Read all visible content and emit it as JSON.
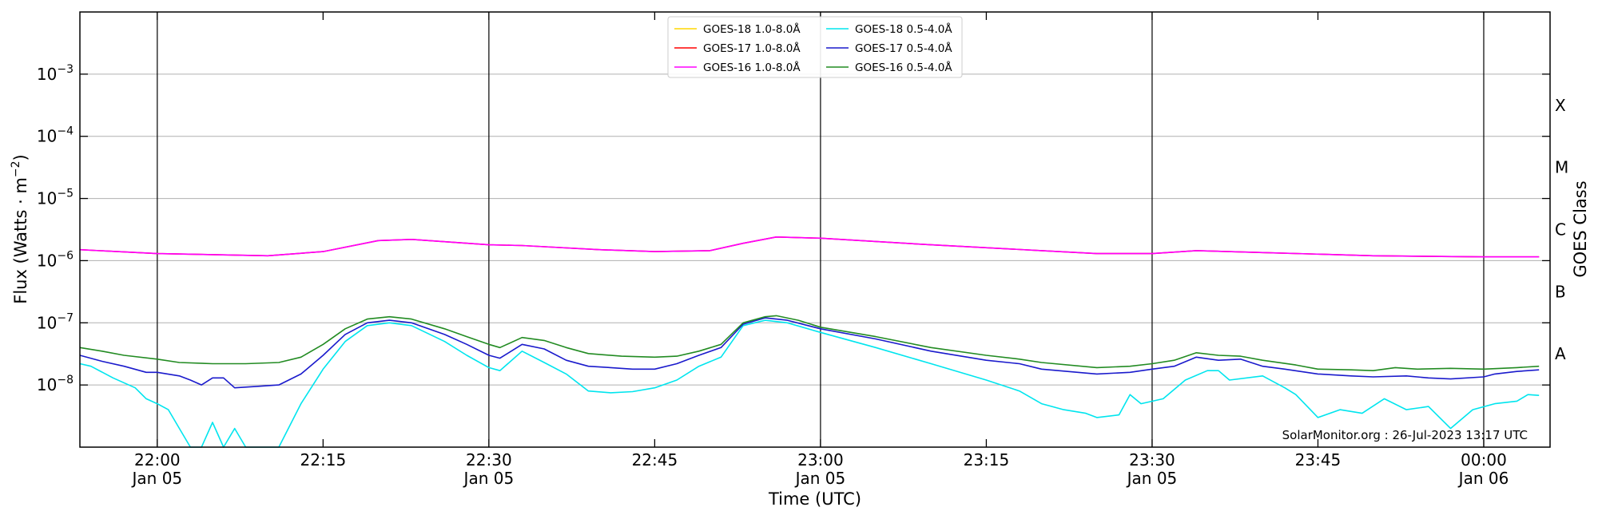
{
  "chart_data": {
    "type": "line",
    "xlabel": "Time (UTC)",
    "ylabel": "Flux (Watts · m",
    "ylabel_exp": "−2",
    "ylabel_close": ")",
    "y2label": "GOES Class",
    "yscale": "log",
    "xlim": [
      "21:53",
      "00:06"
    ],
    "ylim": [
      1e-09,
      0.01
    ],
    "grid": "horizontal",
    "legend_position": "top-center",
    "credit": "SolarMonitor.org : 26-Jul-2023 13:17 UTC",
    "x_ticks": [
      {
        "time": "22:00",
        "label": "22:00",
        "date": "Jan 05",
        "vline": true
      },
      {
        "time": "22:15",
        "label": "22:15",
        "date": "",
        "vline": false
      },
      {
        "time": "22:30",
        "label": "22:30",
        "date": "Jan 05",
        "vline": true
      },
      {
        "time": "22:45",
        "label": "22:45",
        "date": "",
        "vline": false
      },
      {
        "time": "23:00",
        "label": "23:00",
        "date": "Jan 05",
        "vline": true
      },
      {
        "time": "23:15",
        "label": "23:15",
        "date": "",
        "vline": false
      },
      {
        "time": "23:30",
        "label": "23:30",
        "date": "Jan 05",
        "vline": true
      },
      {
        "time": "23:45",
        "label": "23:45",
        "date": "",
        "vline": false
      },
      {
        "time": "00:00",
        "label": "00:00",
        "date": "Jan 06",
        "vline": true
      }
    ],
    "y_ticks": [
      {
        "value": 1e-08,
        "base": "10",
        "exp": "−8"
      },
      {
        "value": 1e-07,
        "base": "10",
        "exp": "−7"
      },
      {
        "value": 1e-06,
        "base": "10",
        "exp": "−6"
      },
      {
        "value": 1e-05,
        "base": "10",
        "exp": "−5"
      },
      {
        "value": 0.0001,
        "base": "10",
        "exp": "−4"
      },
      {
        "value": 0.001,
        "base": "10",
        "exp": "−3"
      }
    ],
    "goes_classes": [
      {
        "label": "A",
        "value": 3.16e-08
      },
      {
        "label": "B",
        "value": 3.16e-07
      },
      {
        "label": "C",
        "value": 3.16e-06
      },
      {
        "label": "M",
        "value": 3.16e-05
      },
      {
        "label": "X",
        "value": 0.000316
      }
    ],
    "series": [
      {
        "name": "GOES-18 1.0-8.0Å",
        "color": "#ffd700",
        "points": [],
        "legend_col": 0,
        "legend_row": 0
      },
      {
        "name": "GOES-17 1.0-8.0Å",
        "color": "#ff0000",
        "points": [
          [
            "21:53",
            1.5e-06
          ],
          [
            "22:00",
            1.3e-06
          ],
          [
            "22:10",
            1.2e-06
          ],
          [
            "22:15",
            1.4e-06
          ],
          [
            "22:20",
            2.1e-06
          ],
          [
            "22:23",
            2.2e-06
          ],
          [
            "22:30",
            1.8e-06
          ],
          [
            "22:33",
            1.75e-06
          ],
          [
            "22:40",
            1.5e-06
          ],
          [
            "22:45",
            1.4e-06
          ],
          [
            "22:50",
            1.45e-06
          ],
          [
            "22:53",
            1.9e-06
          ],
          [
            "22:56",
            2.4e-06
          ],
          [
            "23:00",
            2.3e-06
          ],
          [
            "23:10",
            1.8e-06
          ],
          [
            "23:20",
            1.45e-06
          ],
          [
            "23:25",
            1.3e-06
          ],
          [
            "23:30",
            1.3e-06
          ],
          [
            "23:34",
            1.45e-06
          ],
          [
            "23:40",
            1.35e-06
          ],
          [
            "23:50",
            1.2e-06
          ],
          [
            "00:00",
            1.15e-06
          ],
          [
            "00:05",
            1.15e-06
          ]
        ],
        "legend_col": 0,
        "legend_row": 1
      },
      {
        "name": "GOES-16 1.0-8.0Å",
        "color": "#ff00ff",
        "points": [
          [
            "21:53",
            1.5e-06
          ],
          [
            "22:00",
            1.3e-06
          ],
          [
            "22:10",
            1.2e-06
          ],
          [
            "22:15",
            1.4e-06
          ],
          [
            "22:20",
            2.1e-06
          ],
          [
            "22:23",
            2.2e-06
          ],
          [
            "22:30",
            1.8e-06
          ],
          [
            "22:33",
            1.75e-06
          ],
          [
            "22:40",
            1.5e-06
          ],
          [
            "22:45",
            1.4e-06
          ],
          [
            "22:50",
            1.45e-06
          ],
          [
            "22:53",
            1.9e-06
          ],
          [
            "22:56",
            2.4e-06
          ],
          [
            "23:00",
            2.3e-06
          ],
          [
            "23:10",
            1.8e-06
          ],
          [
            "23:20",
            1.45e-06
          ],
          [
            "23:25",
            1.3e-06
          ],
          [
            "23:30",
            1.3e-06
          ],
          [
            "23:34",
            1.45e-06
          ],
          [
            "23:40",
            1.35e-06
          ],
          [
            "23:50",
            1.2e-06
          ],
          [
            "00:00",
            1.15e-06
          ],
          [
            "00:05",
            1.15e-06
          ]
        ],
        "legend_col": 0,
        "legend_row": 2
      },
      {
        "name": "GOES-18 0.5-4.0Å",
        "color": "#00e5ee",
        "points": [
          [
            "21:53",
            2.2e-08
          ],
          [
            "21:54",
            2e-08
          ],
          [
            "21:56",
            1.3e-08
          ],
          [
            "21:58",
            9e-09
          ],
          [
            "21:59",
            6e-09
          ],
          [
            "22:00",
            5e-09
          ],
          [
            "22:01",
            4e-09
          ],
          [
            "22:02",
            2e-09
          ],
          [
            "22:03",
            1e-09
          ],
          [
            "22:04",
            1e-09
          ],
          [
            "22:05",
            2.5e-09
          ],
          [
            "22:06",
            1e-09
          ],
          [
            "22:07",
            2e-09
          ],
          [
            "22:08",
            1e-09
          ],
          [
            "22:11",
            1e-09
          ],
          [
            "22:13",
            5e-09
          ],
          [
            "22:15",
            1.8e-08
          ],
          [
            "22:17",
            5e-08
          ],
          [
            "22:19",
            9e-08
          ],
          [
            "22:21",
            1e-07
          ],
          [
            "22:23",
            9e-08
          ],
          [
            "22:26",
            5e-08
          ],
          [
            "22:28",
            3e-08
          ],
          [
            "22:30",
            1.9e-08
          ],
          [
            "22:31",
            1.7e-08
          ],
          [
            "22:33",
            3.5e-08
          ],
          [
            "22:35",
            2.3e-08
          ],
          [
            "22:37",
            1.5e-08
          ],
          [
            "22:39",
            8e-09
          ],
          [
            "22:41",
            7.5e-09
          ],
          [
            "22:43",
            7.8e-09
          ],
          [
            "22:45",
            9e-09
          ],
          [
            "22:47",
            1.2e-08
          ],
          [
            "22:49",
            2e-08
          ],
          [
            "22:51",
            2.8e-08
          ],
          [
            "22:53",
            9e-08
          ],
          [
            "22:55",
            1.1e-07
          ],
          [
            "22:57",
            1e-07
          ],
          [
            "23:00",
            7e-08
          ],
          [
            "23:05",
            4e-08
          ],
          [
            "23:10",
            2.2e-08
          ],
          [
            "23:15",
            1.2e-08
          ],
          [
            "23:18",
            8e-09
          ],
          [
            "23:20",
            5e-09
          ],
          [
            "23:22",
            4e-09
          ],
          [
            "23:24",
            3.5e-09
          ],
          [
            "23:25",
            3e-09
          ],
          [
            "23:27",
            3.3e-09
          ],
          [
            "23:28",
            7e-09
          ],
          [
            "23:29",
            5e-09
          ],
          [
            "23:31",
            6e-09
          ],
          [
            "23:33",
            1.2e-08
          ],
          [
            "23:35",
            1.7e-08
          ],
          [
            "23:36",
            1.7e-08
          ],
          [
            "23:37",
            1.2e-08
          ],
          [
            "23:40",
            1.4e-08
          ],
          [
            "23:42",
            9e-09
          ],
          [
            "23:43",
            7e-09
          ],
          [
            "23:45",
            3e-09
          ],
          [
            "23:47",
            4e-09
          ],
          [
            "23:49",
            3.5e-09
          ],
          [
            "23:51",
            6e-09
          ],
          [
            "23:53",
            4e-09
          ],
          [
            "23:55",
            4.5e-09
          ],
          [
            "23:57",
            2e-09
          ],
          [
            "23:59",
            4e-09
          ],
          [
            "00:01",
            5e-09
          ],
          [
            "00:03",
            5.5e-09
          ],
          [
            "00:04",
            7e-09
          ],
          [
            "00:05",
            6.8e-09
          ]
        ],
        "legend_col": 1,
        "legend_row": 0
      },
      {
        "name": "GOES-17 0.5-4.0Å",
        "color": "#1a1acc",
        "points": [
          [
            "21:53",
            3e-08
          ],
          [
            "21:55",
            2.4e-08
          ],
          [
            "21:57",
            2e-08
          ],
          [
            "21:59",
            1.6e-08
          ],
          [
            "22:00",
            1.6e-08
          ],
          [
            "22:02",
            1.4e-08
          ],
          [
            "22:03",
            1.2e-08
          ],
          [
            "22:04",
            1e-08
          ],
          [
            "22:05",
            1.3e-08
          ],
          [
            "22:06",
            1.3e-08
          ],
          [
            "22:07",
            9e-09
          ],
          [
            "22:09",
            9.5e-09
          ],
          [
            "22:11",
            1e-08
          ],
          [
            "22:13",
            1.5e-08
          ],
          [
            "22:15",
            3e-08
          ],
          [
            "22:17",
            6.5e-08
          ],
          [
            "22:19",
            1e-07
          ],
          [
            "22:21",
            1.1e-07
          ],
          [
            "22:23",
            1e-07
          ],
          [
            "22:26",
            6.5e-08
          ],
          [
            "22:28",
            4.5e-08
          ],
          [
            "22:30",
            3e-08
          ],
          [
            "22:31",
            2.7e-08
          ],
          [
            "22:33",
            4.5e-08
          ],
          [
            "22:35",
            3.8e-08
          ],
          [
            "22:37",
            2.5e-08
          ],
          [
            "22:39",
            2e-08
          ],
          [
            "22:41",
            1.9e-08
          ],
          [
            "22:43",
            1.8e-08
          ],
          [
            "22:45",
            1.8e-08
          ],
          [
            "22:47",
            2.2e-08
          ],
          [
            "22:49",
            3e-08
          ],
          [
            "22:51",
            4e-08
          ],
          [
            "22:53",
            9.5e-08
          ],
          [
            "22:55",
            1.2e-07
          ],
          [
            "22:57",
            1.1e-07
          ],
          [
            "23:00",
            8e-08
          ],
          [
            "23:05",
            5.5e-08
          ],
          [
            "23:10",
            3.5e-08
          ],
          [
            "23:15",
            2.5e-08
          ],
          [
            "23:18",
            2.2e-08
          ],
          [
            "23:20",
            1.8e-08
          ],
          [
            "23:25",
            1.5e-08
          ],
          [
            "23:28",
            1.6e-08
          ],
          [
            "23:30",
            1.8e-08
          ],
          [
            "23:32",
            2e-08
          ],
          [
            "23:34",
            2.8e-08
          ],
          [
            "23:36",
            2.5e-08
          ],
          [
            "23:38",
            2.6e-08
          ],
          [
            "23:40",
            2e-08
          ],
          [
            "23:42",
            1.8e-08
          ],
          [
            "23:45",
            1.5e-08
          ],
          [
            "23:48",
            1.4e-08
          ],
          [
            "23:50",
            1.35e-08
          ],
          [
            "23:53",
            1.4e-08
          ],
          [
            "23:55",
            1.3e-08
          ],
          [
            "23:57",
            1.25e-08
          ],
          [
            "00:00",
            1.35e-08
          ],
          [
            "00:01",
            1.5e-08
          ],
          [
            "00:03",
            1.65e-08
          ],
          [
            "00:05",
            1.75e-08
          ]
        ],
        "legend_col": 1,
        "legend_row": 1
      },
      {
        "name": "GOES-16 0.5-4.0Å",
        "color": "#228b22",
        "points": [
          [
            "21:53",
            4e-08
          ],
          [
            "21:55",
            3.5e-08
          ],
          [
            "21:57",
            3e-08
          ],
          [
            "22:00",
            2.6e-08
          ],
          [
            "22:02",
            2.3e-08
          ],
          [
            "22:05",
            2.2e-08
          ],
          [
            "22:08",
            2.2e-08
          ],
          [
            "22:11",
            2.3e-08
          ],
          [
            "22:13",
            2.8e-08
          ],
          [
            "22:15",
            4.5e-08
          ],
          [
            "22:17",
            8e-08
          ],
          [
            "22:19",
            1.15e-07
          ],
          [
            "22:21",
            1.25e-07
          ],
          [
            "22:23",
            1.15e-07
          ],
          [
            "22:26",
            8e-08
          ],
          [
            "22:28",
            6e-08
          ],
          [
            "22:30",
            4.5e-08
          ],
          [
            "22:31",
            4e-08
          ],
          [
            "22:33",
            5.8e-08
          ],
          [
            "22:35",
            5.2e-08
          ],
          [
            "22:37",
            4e-08
          ],
          [
            "22:39",
            3.2e-08
          ],
          [
            "22:42",
            2.9e-08
          ],
          [
            "22:45",
            2.8e-08
          ],
          [
            "22:47",
            2.9e-08
          ],
          [
            "22:49",
            3.5e-08
          ],
          [
            "22:51",
            4.5e-08
          ],
          [
            "22:53",
            1e-07
          ],
          [
            "22:55",
            1.25e-07
          ],
          [
            "22:56",
            1.3e-07
          ],
          [
            "22:58",
            1.1e-07
          ],
          [
            "23:00",
            8.5e-08
          ],
          [
            "23:05",
            6e-08
          ],
          [
            "23:10",
            4e-08
          ],
          [
            "23:15",
            3e-08
          ],
          [
            "23:18",
            2.6e-08
          ],
          [
            "23:20",
            2.3e-08
          ],
          [
            "23:25",
            1.9e-08
          ],
          [
            "23:28",
            2e-08
          ],
          [
            "23:30",
            2.2e-08
          ],
          [
            "23:32",
            2.5e-08
          ],
          [
            "23:34",
            3.3e-08
          ],
          [
            "23:36",
            3e-08
          ],
          [
            "23:38",
            2.9e-08
          ],
          [
            "23:40",
            2.5e-08
          ],
          [
            "23:43",
            2.1e-08
          ],
          [
            "23:45",
            1.8e-08
          ],
          [
            "23:48",
            1.75e-08
          ],
          [
            "23:50",
            1.7e-08
          ],
          [
            "23:52",
            1.9e-08
          ],
          [
            "23:54",
            1.8e-08
          ],
          [
            "23:57",
            1.85e-08
          ],
          [
            "00:00",
            1.8e-08
          ],
          [
            "00:03",
            1.9e-08
          ],
          [
            "00:05",
            2e-08
          ]
        ],
        "legend_col": 1,
        "legend_row": 2
      }
    ]
  }
}
